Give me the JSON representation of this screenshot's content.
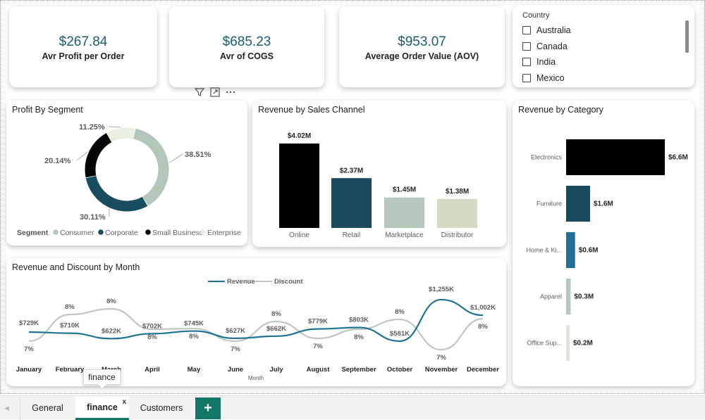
{
  "kpis": [
    {
      "value": "$267.84",
      "label": "Avr Profit per Order"
    },
    {
      "value": "$685.23",
      "label": "Avr of COGS"
    },
    {
      "value": "$953.07",
      "label": "Average Order Value (AOV)"
    }
  ],
  "slicer": {
    "title": "Country",
    "items": [
      "Australia",
      "Canada",
      "India",
      "Mexico"
    ]
  },
  "colors": {
    "accent": "#117865",
    "kpi_value": "#1b5e70",
    "consumer": "#b3c7b8",
    "corporate": "#184d5e",
    "small_business": "#050505",
    "enterprise": "#e9efe1",
    "revenue_line": "#1f7393",
    "discount_line": "#bfc8c2",
    "online": "#000000",
    "retail": "#194a5c",
    "marketplace": "#b5c8bb",
    "distributor": "#d3dbc6",
    "electronics": "#000000",
    "furniture": "#194a5c",
    "home": "#1f6f97",
    "apparel": "#b5c8bb",
    "office": "#dfe4d6"
  },
  "icons": {
    "filter": "filter-icon",
    "focus": "focus-mode-icon",
    "more": "more-options-icon",
    "add": "add-page-icon"
  },
  "tabs": [
    "General",
    "finance",
    "Customers"
  ],
  "tab_close": "x",
  "add_tab_label": "+",
  "tooltip": "finance",
  "chart_data": [
    {
      "type": "pie",
      "title": "Profit By Segment",
      "legend_title": "Segment",
      "categories": [
        "Consumer",
        "Corporate",
        "Small Business",
        "Enterprise"
      ],
      "values": [
        38.51,
        30.11,
        20.14,
        11.25
      ],
      "labels": [
        "38.51%",
        "30.11%",
        "20.14%",
        "11.25%"
      ],
      "legend_position": "bottom"
    },
    {
      "type": "bar",
      "title": "Revenue by Sales Channel",
      "categories": [
        "Online",
        "Retail",
        "Marketplace",
        "Distributor"
      ],
      "values": [
        4.02,
        2.37,
        1.45,
        1.38
      ],
      "labels": [
        "$4.02M",
        "$2.37M",
        "$1.45M",
        "$1.38M"
      ],
      "unit": "M"
    },
    {
      "type": "bar",
      "orientation": "horizontal",
      "title": "Revenue by Category",
      "categories": [
        "Electronics",
        "Furniture",
        "Home & Ki...",
        "Apparel",
        "Office Sup..."
      ],
      "values": [
        6.6,
        1.6,
        0.6,
        0.3,
        0.2
      ],
      "labels": [
        "$6.6M",
        "$1.6M",
        "$0.6M",
        "$0.3M",
        "$0.2M"
      ]
    },
    {
      "type": "line",
      "title": "Revenue and Discount by Month",
      "xlabel": "Month",
      "categories": [
        "January",
        "February",
        "March",
        "April",
        "May",
        "June",
        "July",
        "August",
        "September",
        "October",
        "November",
        "December"
      ],
      "series": [
        {
          "name": "Revenue",
          "values": [
            729,
            710,
            622,
            702,
            745,
            627,
            662,
            779,
            803,
            581,
            1255,
            1002
          ],
          "labels": [
            "$729K",
            "$710K",
            "$622K",
            "$702K",
            "$745K",
            "$627K",
            "$662K",
            "$779K",
            "$803K",
            "$581K",
            "$1,255K",
            "$1,002K"
          ]
        },
        {
          "name": "Discount",
          "values": [
            7,
            8,
            8,
            8,
            8,
            7,
            8,
            7,
            8,
            8,
            7,
            8
          ],
          "labels": [
            "7%",
            "8%",
            "8%",
            "8%",
            "8%",
            "7%",
            "8%",
            "7%",
            "8%",
            "8%",
            "7%",
            "8%"
          ]
        }
      ],
      "legend_position": "top-center"
    }
  ]
}
